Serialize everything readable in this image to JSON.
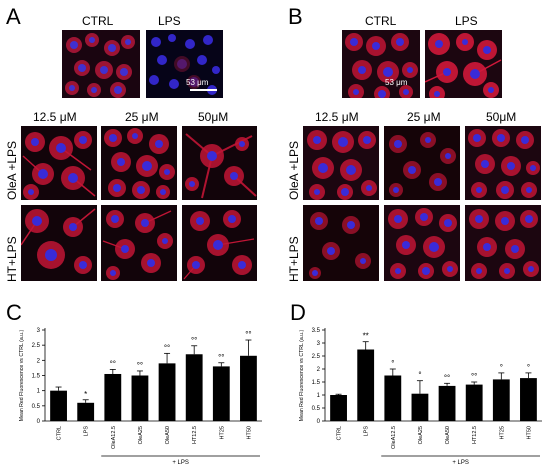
{
  "panels": {
    "A": {
      "letter": "A",
      "top_labels": [
        "CTRL",
        "LPS"
      ],
      "scale_label": "53 μm",
      "conc_labels": [
        "12.5 μM",
        "25 μM",
        "50μM"
      ],
      "row_labels": [
        "OleA +LPS",
        "HT+LPS"
      ]
    },
    "B": {
      "letter": "B",
      "top_labels": [
        "CTRL",
        "LPS"
      ],
      "scale_label": "53 μm",
      "conc_labels": [
        "12.5 μM",
        "25 μM",
        "50μM"
      ],
      "row_labels": [
        "OleA +LPS",
        "HT+LPS"
      ]
    },
    "C": {
      "letter": "C"
    },
    "D": {
      "letter": "D"
    }
  },
  "colors": {
    "cell_red": "#c8102e",
    "nucleus_blue": "#3a2bd8",
    "bar": "#000000",
    "image_bg": "#0a0306"
  },
  "chart_data": [
    {
      "type": "bar",
      "panel": "C",
      "categories": [
        "CTRL",
        "LPS",
        "OleA12.5",
        "OleA25",
        "OleA50",
        "HT12.5",
        "HT25",
        "HT50"
      ],
      "values": [
        1.0,
        0.6,
        1.55,
        1.5,
        1.9,
        2.2,
        1.8,
        2.15
      ],
      "errors": [
        0.12,
        0.1,
        0.15,
        0.15,
        0.33,
        0.28,
        0.12,
        0.52
      ],
      "significance": [
        "",
        "*",
        "°°",
        "°°",
        "°°",
        "°°",
        "°°",
        "°°"
      ],
      "ylabel": "Mean Red Fluorescence vs CTRL (a.u.)",
      "yticks": [
        "0",
        "0.5",
        "1",
        "1.5",
        "2",
        "2.5",
        "3"
      ],
      "ylim": [
        0,
        3
      ],
      "group_label": "+ LPS",
      "group_start": 2,
      "grid": false
    },
    {
      "type": "bar",
      "panel": "D",
      "categories": [
        "CTRL",
        "LPS",
        "OleA12.5",
        "OleA25",
        "OleA50",
        "HT12.5",
        "HT25",
        "HT50"
      ],
      "values": [
        1.0,
        2.75,
        1.75,
        1.05,
        1.35,
        1.4,
        1.6,
        1.65
      ],
      "errors": [
        0.03,
        0.3,
        0.25,
        0.5,
        0.1,
        0.1,
        0.25,
        0.2
      ],
      "significance": [
        "",
        "**",
        "°",
        "°",
        "°°",
        "°°",
        "°",
        "°"
      ],
      "ylabel": "Mean Red Fluorescence vs CTRL (a.u.)",
      "yticks": [
        "0",
        "0.5",
        "1",
        "1.5",
        "2",
        "2.5",
        "3",
        "3.5"
      ],
      "ylim": [
        0,
        3.5
      ],
      "group_label": "+ LPS",
      "group_start": 2,
      "grid": false
    }
  ]
}
